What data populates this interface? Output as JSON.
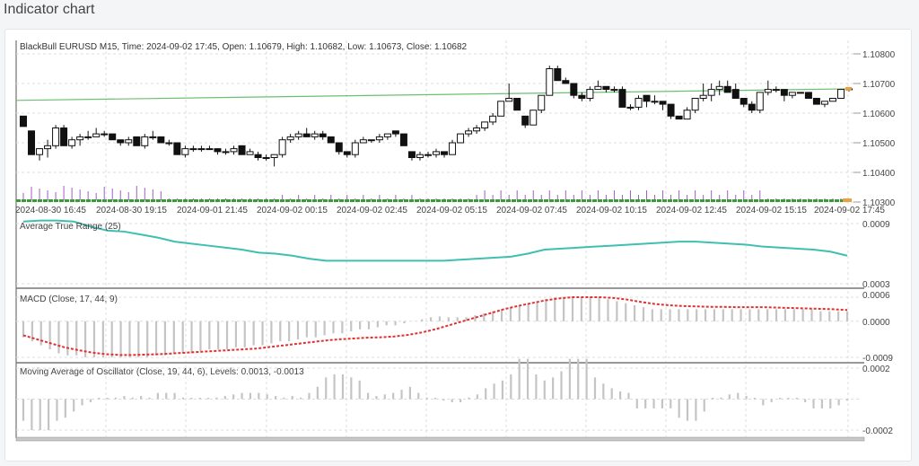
{
  "page": {
    "title": "Indicator chart"
  },
  "chart_data": [
    {
      "type": "candlestick",
      "title": "BlackBull EURUSD M15, Time: 2024-09-02 17:45, Open: 1.10679, High: 1.10682, Low: 1.10673, Close: 1.10682",
      "symbol": "EURUSD",
      "broker": "BlackBull",
      "timeframe": "M15",
      "last_bar": {
        "time": "2024-09-02 17:45",
        "open": 1.10679,
        "high": 1.10682,
        "low": 1.10673,
        "close": 1.10682
      },
      "y_ticks": [
        "1.10800",
        "1.10700",
        "1.10600",
        "1.10500",
        "1.10400",
        "1.10300"
      ],
      "ylim": [
        1.103,
        1.108
      ],
      "x_ticks": [
        "2024-08-30 16:45",
        "2024-08-30 19:15",
        "2024-09-01 21:45",
        "2024-09-02 00:15",
        "2024-09-02 02:45",
        "2024-09-02 05:15",
        "2024-09-02 07:45",
        "2024-09-02 10:15",
        "2024-09-02 12:45",
        "2024-09-02 15:15",
        "2024-09-02 17:45"
      ],
      "trendline": {
        "color": "#6cc070",
        "start": 1.10643,
        "end": 1.10682
      },
      "candles": [
        [
          1.1059,
          1.1059,
          1.10555,
          1.10555
        ],
        [
          1.1054,
          1.1054,
          1.1046,
          1.1046
        ],
        [
          1.1046,
          1.1048,
          1.1044,
          1.1048
        ],
        [
          1.1048,
          1.1051,
          1.1045,
          1.1049
        ],
        [
          1.1049,
          1.1056,
          1.1048,
          1.1055
        ],
        [
          1.1055,
          1.1056,
          1.1049,
          1.1049
        ],
        [
          1.1049,
          1.1052,
          1.1048,
          1.1051
        ],
        [
          1.1051,
          1.1053,
          1.1049,
          1.1052
        ],
        [
          1.1052,
          1.1054,
          1.1051,
          1.1052
        ],
        [
          1.1052,
          1.1055,
          1.1052,
          1.1053
        ],
        [
          1.1053,
          1.1054,
          1.1052,
          1.1053
        ],
        [
          1.1053,
          1.1053,
          1.1051,
          1.1051
        ],
        [
          1.1051,
          1.1051,
          1.1049,
          1.105
        ],
        [
          1.105,
          1.1052,
          1.1049,
          1.1051
        ],
        [
          1.1052,
          1.1052,
          1.1049,
          1.1049
        ],
        [
          1.1049,
          1.1053,
          1.1048,
          1.1052
        ],
        [
          1.1052,
          1.1054,
          1.1051,
          1.1052
        ],
        [
          1.1052,
          1.1052,
          1.105,
          1.105
        ],
        [
          1.105,
          1.1051,
          1.1049,
          1.105
        ],
        [
          1.105,
          1.105,
          1.1046,
          1.1046
        ],
        [
          1.1046,
          1.1049,
          1.1045,
          1.1048
        ],
        [
          1.1048,
          1.1049,
          1.1047,
          1.1048
        ],
        [
          1.1048,
          1.1049,
          1.1047,
          1.1048
        ],
        [
          1.1048,
          1.1049,
          1.1048,
          1.1048
        ],
        [
          1.1048,
          1.1048,
          1.1046,
          1.1047
        ],
        [
          1.1047,
          1.1048,
          1.1046,
          1.1047
        ],
        [
          1.1047,
          1.1049,
          1.1046,
          1.1048
        ],
        [
          1.1049,
          1.1049,
          1.1046,
          1.1046
        ],
        [
          1.1046,
          1.1048,
          1.1046,
          1.1047
        ],
        [
          1.1046,
          1.1047,
          1.1044,
          1.1045
        ],
        [
          1.1045,
          1.1046,
          1.1044,
          1.1045
        ],
        [
          1.1045,
          1.1046,
          1.1042,
          1.1046
        ],
        [
          1.1046,
          1.1052,
          1.1045,
          1.1051
        ],
        [
          1.1051,
          1.1053,
          1.105,
          1.1052
        ],
        [
          1.1052,
          1.1054,
          1.1051,
          1.1053
        ],
        [
          1.1053,
          1.1055,
          1.1052,
          1.1052
        ],
        [
          1.1052,
          1.1054,
          1.1051,
          1.1053
        ],
        [
          1.1053,
          1.1054,
          1.1051,
          1.1052
        ],
        [
          1.1052,
          1.1052,
          1.105,
          1.105
        ],
        [
          1.105,
          1.105,
          1.1046,
          1.1047
        ],
        [
          1.1047,
          1.1047,
          1.1045,
          1.1046
        ],
        [
          1.1046,
          1.1051,
          1.1045,
          1.105
        ],
        [
          1.105,
          1.1052,
          1.105,
          1.1051
        ],
        [
          1.1051,
          1.1051,
          1.105,
          1.1051
        ],
        [
          1.1051,
          1.1053,
          1.105,
          1.1052
        ],
        [
          1.1052,
          1.1053,
          1.1051,
          1.1053
        ],
        [
          1.1054,
          1.1054,
          1.1052,
          1.1053
        ],
        [
          1.1053,
          1.1053,
          1.1049,
          1.1049
        ],
        [
          1.1047,
          1.1047,
          1.1044,
          1.1045
        ],
        [
          1.1045,
          1.1047,
          1.1044,
          1.1046
        ],
        [
          1.1046,
          1.1047,
          1.1045,
          1.1046
        ],
        [
          1.1046,
          1.1048,
          1.1045,
          1.1047
        ],
        [
          1.1047,
          1.1047,
          1.1045,
          1.1046
        ],
        [
          1.1046,
          1.1051,
          1.1046,
          1.105
        ],
        [
          1.105,
          1.1053,
          1.105,
          1.1053
        ],
        [
          1.1053,
          1.1055,
          1.1052,
          1.1054
        ],
        [
          1.1054,
          1.1056,
          1.1053,
          1.1055
        ],
        [
          1.1055,
          1.1057,
          1.1054,
          1.1057
        ],
        [
          1.1057,
          1.106,
          1.1056,
          1.1059
        ],
        [
          1.1059,
          1.1064,
          1.1059,
          1.1064
        ],
        [
          1.1064,
          1.107,
          1.1064,
          1.1065
        ],
        [
          1.1065,
          1.1065,
          1.1061,
          1.1061
        ],
        [
          1.1059,
          1.1059,
          1.1055,
          1.1056
        ],
        [
          1.1056,
          1.1061,
          1.1056,
          1.1061
        ],
        [
          1.1061,
          1.1066,
          1.106,
          1.1066
        ],
        [
          1.1066,
          1.1076,
          1.1066,
          1.1075
        ],
        [
          1.1075,
          1.1076,
          1.1071,
          1.1071
        ],
        [
          1.1071,
          1.1072,
          1.107,
          1.107
        ],
        [
          1.107,
          1.107,
          1.1065,
          1.1066
        ],
        [
          1.1066,
          1.1067,
          1.1064,
          1.1065
        ],
        [
          1.1065,
          1.1069,
          1.1064,
          1.1068
        ],
        [
          1.1068,
          1.1071,
          1.1068,
          1.1069
        ],
        [
          1.1069,
          1.1069,
          1.1067,
          1.1068
        ],
        [
          1.1068,
          1.1069,
          1.1067,
          1.1068
        ],
        [
          1.1068,
          1.1069,
          1.1062,
          1.1062
        ],
        [
          1.1062,
          1.1063,
          1.1061,
          1.1062
        ],
        [
          1.1062,
          1.1066,
          1.1061,
          1.1065
        ],
        [
          1.1066,
          1.1066,
          1.1062,
          1.1064
        ],
        [
          1.1064,
          1.1066,
          1.1063,
          1.1064
        ],
        [
          1.1064,
          1.1064,
          1.1061,
          1.1063
        ],
        [
          1.1063,
          1.1063,
          1.1058,
          1.1059
        ],
        [
          1.1059,
          1.1059,
          1.1058,
          1.1058
        ],
        [
          1.1058,
          1.1062,
          1.1058,
          1.1061
        ],
        [
          1.1061,
          1.1065,
          1.106,
          1.1065
        ],
        [
          1.1065,
          1.107,
          1.1064,
          1.1066
        ],
        [
          1.1066,
          1.107,
          1.1064,
          1.1068
        ],
        [
          1.1068,
          1.1071,
          1.1066,
          1.1069
        ],
        [
          1.1069,
          1.1071,
          1.1069,
          1.1067
        ],
        [
          1.1068,
          1.107,
          1.1065,
          1.1065
        ],
        [
          1.1065,
          1.1065,
          1.1062,
          1.1063
        ],
        [
          1.1063,
          1.1064,
          1.106,
          1.1061
        ],
        [
          1.1061,
          1.1067,
          1.106,
          1.1067
        ],
        [
          1.1067,
          1.1071,
          1.1066,
          1.1068
        ],
        [
          1.1068,
          1.1069,
          1.1067,
          1.1068
        ],
        [
          1.1068,
          1.1068,
          1.1064,
          1.1066
        ],
        [
          1.1066,
          1.1067,
          1.1065,
          1.1067
        ],
        [
          1.1067,
          1.1067,
          1.1067,
          1.1067
        ],
        [
          1.1067,
          1.1067,
          1.1065,
          1.1065
        ],
        [
          1.1065,
          1.1065,
          1.1063,
          1.1063
        ],
        [
          1.1063,
          1.1064,
          1.1062,
          1.1064
        ],
        [
          1.1064,
          1.1065,
          1.1064,
          1.1065
        ],
        [
          1.1065,
          1.1068,
          1.1065,
          1.1068
        ],
        [
          1.10679,
          1.10682,
          1.10673,
          1.10682
        ]
      ],
      "volumes_note": "tick volume bars (purple) along bottom, green baseline"
    },
    {
      "type": "line",
      "title": "Average True Range (25)",
      "y_ticks": [
        "0.0009",
        "0.0003"
      ],
      "ylim": [
        0.0003,
        0.0009
      ],
      "color": "#3fbfb0",
      "values": [
        0.00092,
        0.00093,
        0.00093,
        0.00092,
        0.00087,
        0.00083,
        0.00082,
        0.00079,
        0.00076,
        0.00072,
        0.0007,
        0.00068,
        0.00066,
        0.00064,
        0.00061,
        0.0006,
        0.00058,
        0.00055,
        0.00053,
        0.00053,
        0.00053,
        0.00053,
        0.00053,
        0.00053,
        0.00053,
        0.00053,
        0.00054,
        0.00055,
        0.00056,
        0.00057,
        0.0006,
        0.00064,
        0.00065,
        0.00066,
        0.00067,
        0.00068,
        0.00069,
        0.0007,
        0.00071,
        0.00072,
        0.00072,
        0.00071,
        0.0007,
        0.00069,
        0.00067,
        0.00066,
        0.00065,
        0.00064,
        0.00062,
        0.00058
      ]
    },
    {
      "type": "bar+line",
      "title": "MACD (Close, 17, 44, 9)",
      "y_ticks": [
        "0.0006",
        "0.0000",
        "-0.0009"
      ],
      "ylim": [
        -0.0009,
        0.0006
      ],
      "histogram_color": "#c4c4c4",
      "signal_color": "#e03030",
      "histogram": [
        -0.0004,
        -0.0005,
        -0.0006,
        -0.0007,
        -0.0008,
        -0.00085,
        -0.00085,
        -0.0009,
        -0.0009,
        -0.0009,
        -0.0009,
        -0.0009,
        -0.0009,
        -0.0009,
        -0.0009,
        -0.00085,
        -0.00085,
        -0.0008,
        -0.0008,
        -0.0008,
        -0.00075,
        -0.0007,
        -0.0007,
        -0.0007,
        -0.00065,
        -0.00065,
        -0.0006,
        -0.0006,
        -0.00055,
        -0.0005,
        -0.0005,
        -0.00045,
        -0.0004,
        -0.0004,
        -0.00035,
        -0.0003,
        -0.0003,
        -0.00025,
        -0.0002,
        -0.0002,
        -0.00015,
        -0.0001,
        -0.0001,
        -5e-05,
        0.0,
        5e-05,
        0.0001,
        0.00012,
        0.0001,
        0.0001,
        0.0001,
        0.00015,
        0.0002,
        0.00025,
        0.0003,
        0.00035,
        0.0004,
        0.00045,
        0.0005,
        0.00055,
        0.0006,
        0.0006,
        0.0006,
        0.0006,
        0.0006,
        0.0006,
        0.00055,
        0.0005,
        0.00045,
        0.0004,
        0.00035,
        0.0003,
        0.0003,
        0.0003,
        0.0003,
        0.0003,
        0.0003,
        0.0003,
        0.0003,
        0.0003,
        0.0003,
        0.0003,
        0.0003,
        0.0003,
        0.0003,
        0.0003,
        0.0003,
        0.0003,
        0.0003,
        0.0003,
        0.00025,
        0.00025,
        0.00025,
        0.00025
      ],
      "signal": [
        -0.00035,
        -0.00045,
        -0.00055,
        -0.00065,
        -0.00072,
        -0.00078,
        -0.00082,
        -0.00084,
        -0.00084,
        -0.00083,
        -0.00082,
        -0.0008,
        -0.00078,
        -0.00076,
        -0.00074,
        -0.00072,
        -0.0007,
        -0.00068,
        -0.00064,
        -0.0006,
        -0.00056,
        -0.00052,
        -0.00048,
        -0.00045,
        -0.00043,
        -0.00041,
        -0.0004,
        -0.00038,
        -0.00034,
        -0.00028,
        -0.0002,
        -0.0001,
        0.0,
        0.0001,
        0.0002,
        0.0003,
        0.00038,
        0.00045,
        0.00052,
        0.00057,
        0.0006,
        0.0006,
        0.0006,
        0.00058,
        0.00054,
        0.00048,
        0.00043,
        0.0004,
        0.00038,
        0.00037,
        0.00036,
        0.00036,
        0.00035,
        0.00035,
        0.00035,
        0.00034,
        0.00033,
        0.00032,
        0.00031,
        0.0003,
        0.00028
      ]
    },
    {
      "type": "bar",
      "title": "Moving Average of Oscillator (Close, 19, 44, 6), Levels: 0.0013, -0.0013",
      "y_ticks": [
        "0.0002",
        "-0.0002"
      ],
      "ylim": [
        -0.0002,
        0.0002
      ],
      "color": "#c4c4c4",
      "values": [
        -0.00014,
        -0.0002,
        -0.0002,
        -0.0002,
        -0.00014,
        -0.00012,
        -8e-05,
        -4e-05,
        -2e-05,
        0.0,
        0.0,
        1e-05,
        2e-05,
        1e-05,
        2e-05,
        1e-05,
        4e-05,
        4e-05,
        4e-05,
        1e-05,
        0.0,
        0.0,
        0.0,
        1e-05,
        2e-05,
        3e-05,
        4e-05,
        4e-05,
        4e-05,
        3e-05,
        2e-05,
        1e-05,
        2e-05,
        1e-05,
        4e-05,
        8e-05,
        0.00014,
        0.00016,
        0.00016,
        0.00014,
        0.00012,
        4e-05,
        2e-05,
        3e-05,
        4e-05,
        6e-05,
        8e-05,
        4e-05,
        1e-05,
        0.0,
        -1e-05,
        -2e-05,
        -2e-05,
        1e-05,
        3e-05,
        7e-05,
        0.0001,
        0.00012,
        0.00016,
        0.00026,
        0.00026,
        0.00016,
        0.00012,
        0.00014,
        0.00018,
        0.00026,
        0.00026,
        0.00026,
        0.00014,
        0.0001,
        7e-05,
        5e-05,
        4e-05,
        -6e-05,
        -6e-05,
        -6e-05,
        -6e-05,
        -6e-05,
        -0.00012,
        -0.00014,
        -0.00014,
        -8e-05,
        0.0,
        1e-05,
        3e-05,
        4e-05,
        2e-05,
        0.0,
        -4e-05,
        -2e-05,
        0.0,
        0.0,
        0.0,
        -2e-05,
        -6e-05,
        -6e-05,
        -6e-05,
        -4e-05,
        -1e-05
      ]
    }
  ]
}
